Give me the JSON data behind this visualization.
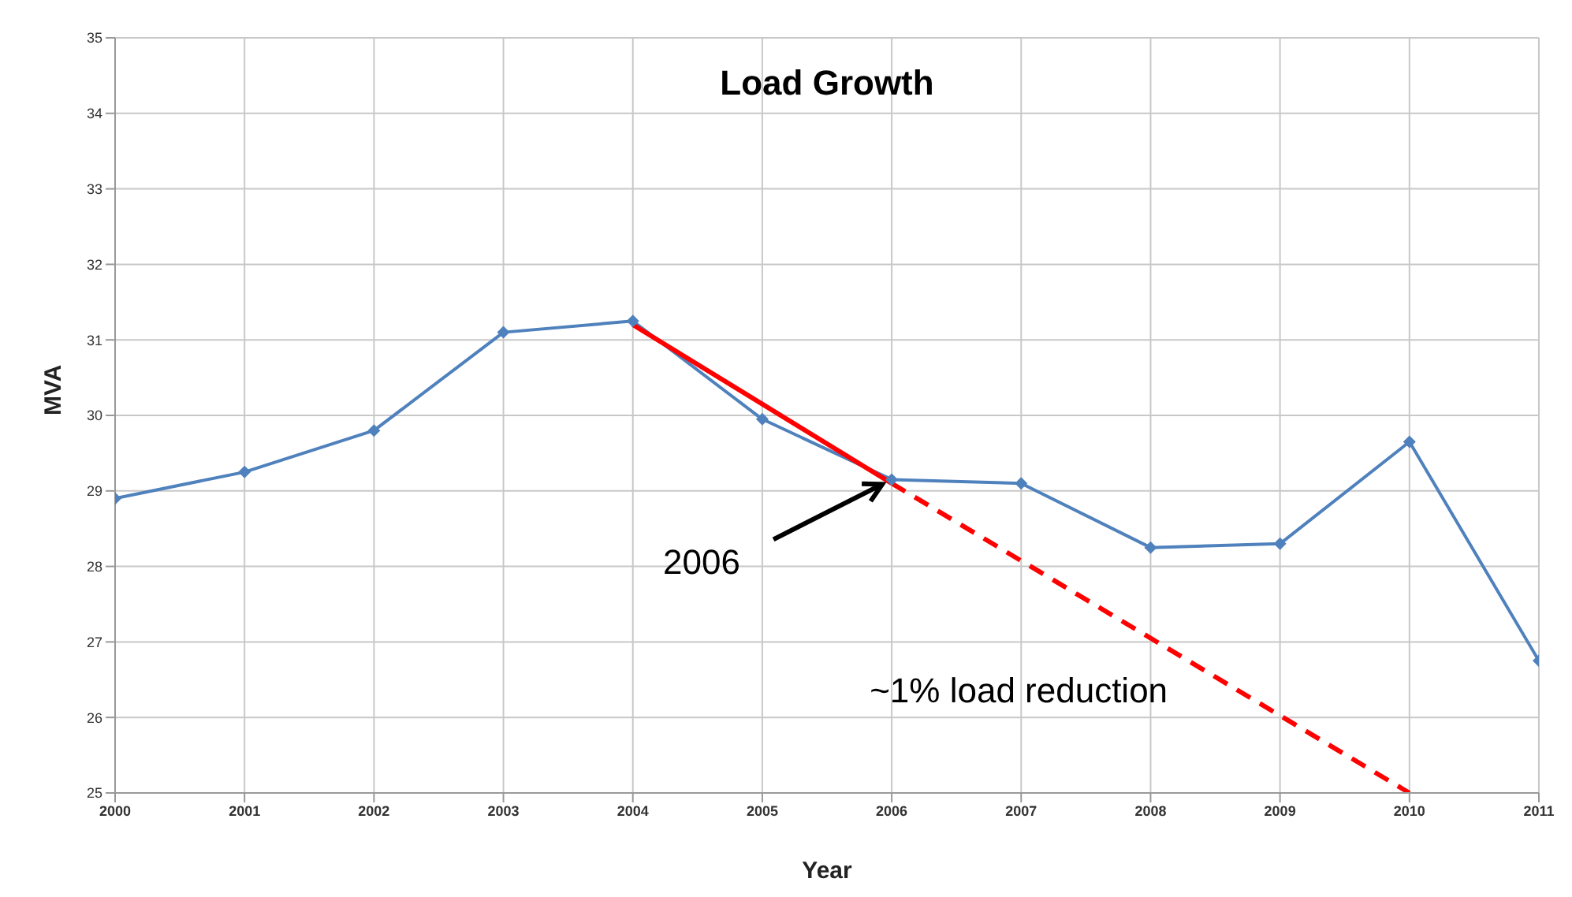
{
  "chart_data": {
    "type": "line",
    "title": "Load Growth",
    "xlabel": "Year",
    "ylabel": "MVA",
    "x": [
      2000,
      2001,
      2002,
      2003,
      2004,
      2005,
      2006,
      2007,
      2008,
      2009,
      2010,
      2011
    ],
    "series": [
      {
        "color": "#4f81bd",
        "values": [
          28.9,
          29.25,
          29.8,
          31.1,
          31.25,
          29.95,
          29.15,
          29.1,
          28.25,
          28.3,
          29.65,
          26.75
        ]
      },
      {
        "type": "line",
        "color": "#ff0000",
        "x": [
          2004,
          2006
        ],
        "values": [
          31.2,
          29.1
        ],
        "marker": "none",
        "line_style": "solid"
      },
      {
        "type": "line",
        "color": "#ff0000",
        "x": [
          2006,
          2010
        ],
        "values": [
          29.1,
          25.0
        ],
        "marker": "none",
        "line_style": "dashed"
      }
    ],
    "xlim": [
      2000,
      2011
    ],
    "xticks": [
      2000,
      2001,
      2002,
      2003,
      2004,
      2005,
      2006,
      2007,
      2008,
      2009,
      2010,
      2011
    ],
    "ylim": [
      25,
      35
    ],
    "yticks": [
      25,
      26,
      27,
      28,
      29,
      30,
      31,
      32,
      33,
      34,
      35
    ],
    "grid": true,
    "marker": "diamond",
    "line_style": "solid",
    "annotations": [
      {
        "text": "2006",
        "x": 2006,
        "y": 29.15
      },
      "~1% load reduction"
    ]
  }
}
